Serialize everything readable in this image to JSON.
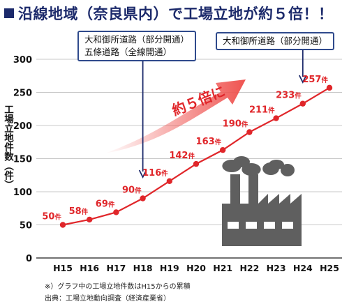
{
  "title": "沿線地域（奈良県内）で工場立地が約５倍！！",
  "callout_1_lines": [
    "大和御所道路（部分開通）",
    "五條道路（全線開通）"
  ],
  "callout_2": "大和御所道路（部分開通）",
  "footnote": "※）グラフ中の工場立地件数はH15からの累積",
  "source": "出典：工場立地動向調査（経済産業省）",
  "colors": {
    "title": "#1c2a6b",
    "line": "#e0262a",
    "arrow": "#ef5350",
    "factory": "#5f5f5f",
    "callout_border": "#2f4a8c"
  },
  "chart_data": {
    "type": "line",
    "title": "沿線地域（奈良県内）で工場立地が約５倍！！",
    "xlabel": "",
    "ylabel": "工場立地件数（件）",
    "categories": [
      "H15",
      "H16",
      "H17",
      "H18",
      "H19",
      "H20",
      "H21",
      "H22",
      "H23",
      "H24",
      "H25"
    ],
    "series": [
      {
        "values": [
          50,
          58,
          69,
          90,
          116,
          142,
          163,
          190,
          211,
          233,
          257
        ],
        "labels": [
          "50",
          "58",
          "69",
          "90",
          "116",
          "142",
          "163",
          "190",
          "211",
          "233",
          "257"
        ]
      }
    ],
    "label_unit": "件",
    "ylim": [
      0,
      300
    ],
    "yticks": [
      0,
      50,
      100,
      150,
      200,
      250,
      300
    ],
    "grid": true,
    "annotation": "約５倍に",
    "markers": [
      {
        "category": "H18",
        "text": "大和御所道路（部分開通） 五條道路（全線開通）"
      },
      {
        "category": "H24",
        "text": "大和御所道路（部分開通）"
      }
    ]
  }
}
